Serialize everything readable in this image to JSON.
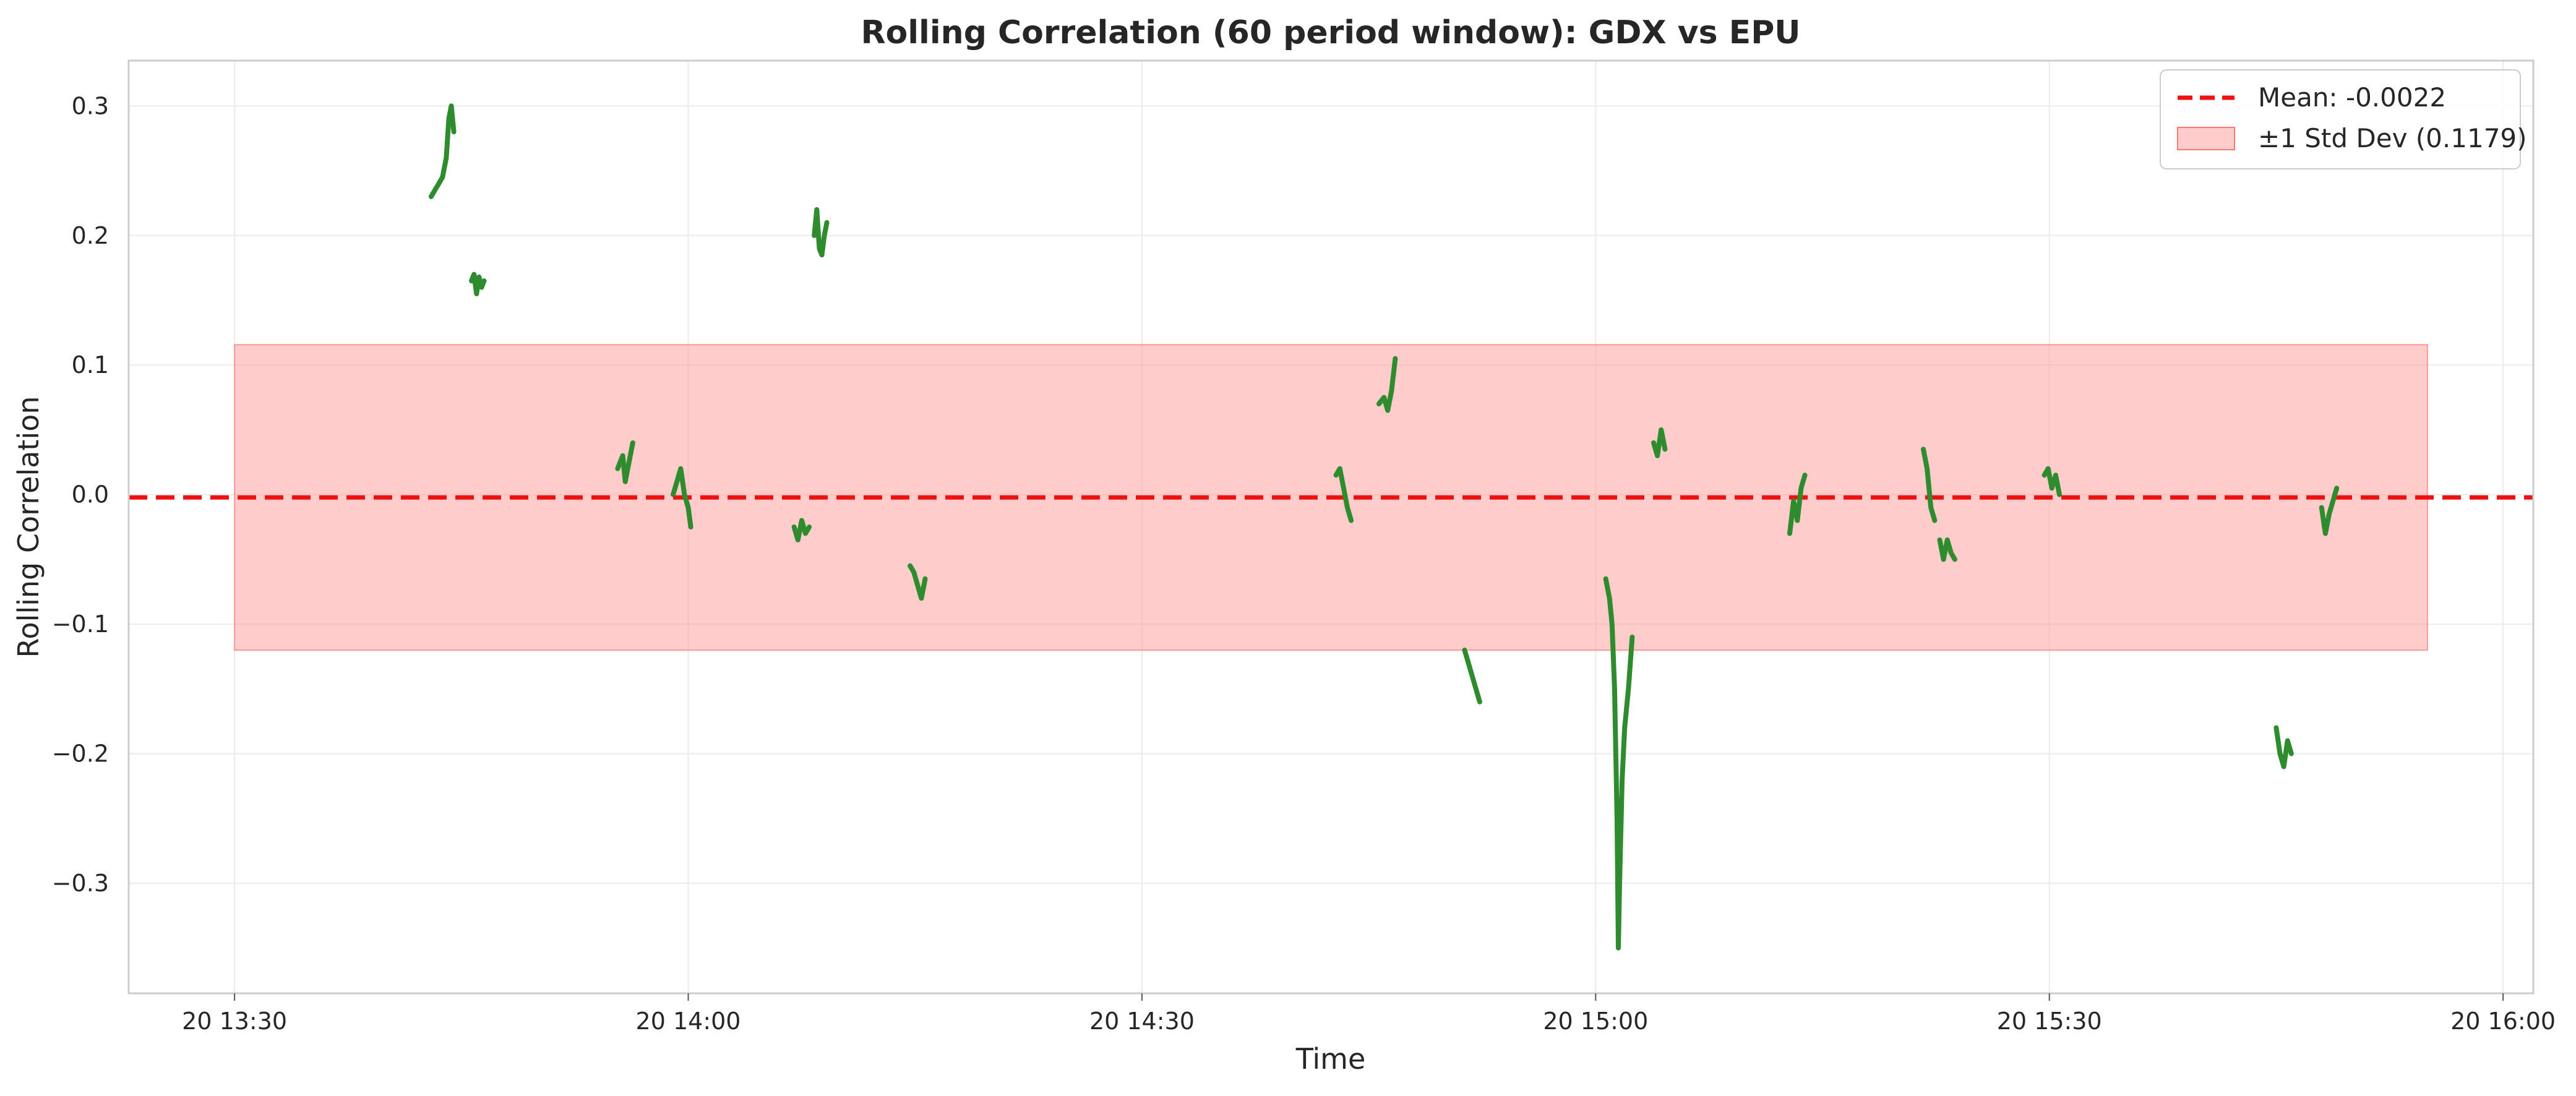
{
  "chart_data": {
    "type": "line",
    "title": "Rolling Correlation (60 period window): GDX vs EPU",
    "xlabel": "Time",
    "ylabel": "Rolling Correlation",
    "x_ticks": [
      "20 13:30",
      "20 14:00",
      "20 14:30",
      "20 15:00",
      "20 15:30",
      "20 16:00"
    ],
    "y_ticks": [
      "−0.3",
      "−0.2",
      "−0.1",
      "0.0",
      "0.1",
      "0.2",
      "0.3"
    ],
    "xlim": [
      "13:23",
      "16:02"
    ],
    "ylim": [
      -0.385,
      0.335
    ],
    "grid": true,
    "legend_position": "top-right",
    "colors": {
      "series": "#2e8b2e",
      "mean": "#ee1111",
      "band": "#ff9999"
    },
    "mean": {
      "label": "Mean: -0.0022",
      "value": -0.0022
    },
    "std_band": {
      "label": "±1 Std Dev (0.1179)",
      "lower": -0.1201,
      "upper": 0.1157,
      "x_start": "13:30",
      "x_end": "15:55"
    },
    "series": [
      {
        "values": [
          [
            [
              "13:43:00",
              0.23
            ],
            [
              "13:43:15",
              0.235
            ],
            [
              "13:43:30",
              0.24
            ],
            [
              "13:43:45",
              0.245
            ],
            [
              "13:44:00",
              0.26
            ],
            [
              "13:44:10",
              0.29
            ],
            [
              "13:44:20",
              0.3
            ],
            [
              "13:44:30",
              0.28
            ]
          ],
          [
            [
              "13:45:40",
              0.165
            ],
            [
              "13:45:50",
              0.17
            ],
            [
              "13:46:00",
              0.155
            ],
            [
              "13:46:10",
              0.168
            ],
            [
              "13:46:20",
              0.16
            ],
            [
              "13:46:30",
              0.165
            ]
          ],
          [
            [
              "13:55:20",
              0.02
            ],
            [
              "13:55:40",
              0.03
            ],
            [
              "13:55:50",
              0.01
            ],
            [
              "13:56:00",
              0.02
            ],
            [
              "13:56:10",
              0.03
            ],
            [
              "13:56:20",
              0.04
            ]
          ],
          [
            [
              "13:59:00",
              0.0
            ],
            [
              "13:59:15",
              0.01
            ],
            [
              "13:59:30",
              0.02
            ],
            [
              "13:59:45",
              0.0
            ],
            [
              "14:00:00",
              -0.01
            ],
            [
              "14:00:10",
              -0.025
            ]
          ],
          [
            [
              "14:07:00",
              -0.025
            ],
            [
              "14:07:15",
              -0.035
            ],
            [
              "14:07:30",
              -0.02
            ],
            [
              "14:07:45",
              -0.03
            ],
            [
              "14:08:00",
              -0.025
            ]
          ],
          [
            [
              "14:08:20",
              0.2
            ],
            [
              "14:08:30",
              0.22
            ],
            [
              "14:08:40",
              0.19
            ],
            [
              "14:08:50",
              0.185
            ],
            [
              "14:09:00",
              0.2
            ],
            [
              "14:09:10",
              0.21
            ]
          ],
          [
            [
              "14:14:40",
              -0.055
            ],
            [
              "14:14:55",
              -0.06
            ],
            [
              "14:15:10",
              -0.07
            ],
            [
              "14:15:25",
              -0.08
            ],
            [
              "14:15:40",
              -0.065
            ]
          ],
          [
            [
              "14:42:50",
              0.015
            ],
            [
              "14:43:05",
              0.02
            ],
            [
              "14:43:20",
              0.005
            ],
            [
              "14:43:35",
              -0.01
            ],
            [
              "14:43:50",
              -0.02
            ]
          ],
          [
            [
              "14:45:40",
              0.07
            ],
            [
              "14:46:00",
              0.075
            ],
            [
              "14:46:15",
              0.065
            ],
            [
              "14:46:30",
              0.08
            ],
            [
              "14:46:45",
              0.105
            ]
          ],
          [
            [
              "14:51:20",
              -0.12
            ],
            [
              "14:51:35",
              -0.13
            ],
            [
              "14:51:50",
              -0.14
            ],
            [
              "14:52:05",
              -0.15
            ],
            [
              "14:52:20",
              -0.16
            ]
          ],
          [
            [
              "15:00:40",
              -0.065
            ],
            [
              "15:00:55",
              -0.08
            ],
            [
              "15:01:05",
              -0.1
            ],
            [
              "15:01:15",
              -0.15
            ],
            [
              "15:01:25",
              -0.25
            ],
            [
              "15:01:30",
              -0.35
            ],
            [
              "15:01:35",
              -0.3
            ],
            [
              "15:01:45",
              -0.22
            ],
            [
              "15:01:55",
              -0.18
            ],
            [
              "15:02:10",
              -0.15
            ],
            [
              "15:02:25",
              -0.11
            ]
          ],
          [
            [
              "15:03:50",
              0.04
            ],
            [
              "15:04:05",
              0.03
            ],
            [
              "15:04:20",
              0.05
            ],
            [
              "15:04:35",
              0.035
            ]
          ],
          [
            [
              "15:12:50",
              -0.03
            ],
            [
              "15:13:05",
              -0.005
            ],
            [
              "15:13:20",
              -0.02
            ],
            [
              "15:13:35",
              0.005
            ],
            [
              "15:13:50",
              0.015
            ]
          ],
          [
            [
              "15:21:40",
              0.035
            ],
            [
              "15:21:55",
              0.02
            ],
            [
              "15:22:10",
              -0.01
            ],
            [
              "15:22:25",
              -0.02
            ]
          ],
          [
            [
              "15:22:45",
              -0.035
            ],
            [
              "15:23:00",
              -0.05
            ],
            [
              "15:23:15",
              -0.035
            ],
            [
              "15:23:30",
              -0.045
            ],
            [
              "15:23:45",
              -0.05
            ]
          ],
          [
            [
              "15:29:40",
              0.015
            ],
            [
              "15:29:55",
              0.02
            ],
            [
              "15:30:10",
              0.005
            ],
            [
              "15:30:25",
              0.015
            ],
            [
              "15:30:40",
              0.0
            ]
          ],
          [
            [
              "15:45:00",
              -0.18
            ],
            [
              "15:45:15",
              -0.2
            ],
            [
              "15:45:30",
              -0.21
            ],
            [
              "15:45:45",
              -0.19
            ],
            [
              "15:46:00",
              -0.2
            ]
          ],
          [
            [
              "15:48:00",
              -0.01
            ],
            [
              "15:48:15",
              -0.03
            ],
            [
              "15:48:30",
              -0.015
            ],
            [
              "15:48:45",
              -0.005
            ],
            [
              "15:49:00",
              0.005
            ]
          ]
        ]
      }
    ]
  }
}
